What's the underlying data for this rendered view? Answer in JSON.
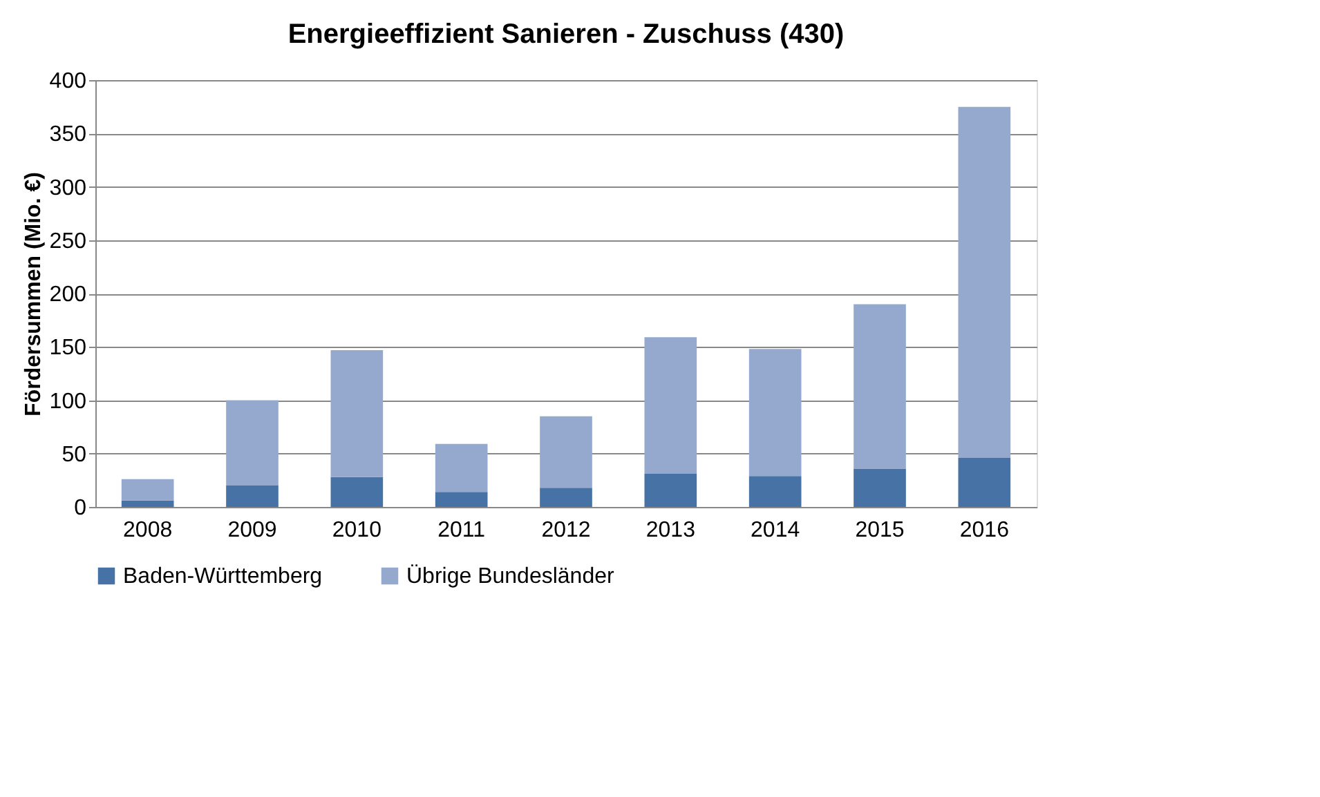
{
  "chart_data": {
    "type": "bar",
    "title": "Energieeffizient Sanieren - Zuschuss (430)",
    "ylabel": "Fördersummen (Mio. €)",
    "categories": [
      "2008",
      "2009",
      "2010",
      "2011",
      "2012",
      "2013",
      "2014",
      "2015",
      "2016"
    ],
    "series": [
      {
        "name": "Baden-Württemberg",
        "color": "#4672a6",
        "values": [
          6,
          20,
          28,
          14,
          18,
          31,
          29,
          36,
          46
        ]
      },
      {
        "name": "Übrige Bundesländer",
        "color": "#95a9cf",
        "values": [
          20,
          80,
          119,
          45,
          67,
          128,
          119,
          154,
          329
        ]
      }
    ],
    "stacked": true,
    "ylim": [
      0,
      400
    ],
    "yticks": [
      0,
      50,
      100,
      150,
      200,
      250,
      300,
      350,
      400
    ],
    "grid": "y",
    "legend": "bottom"
  }
}
